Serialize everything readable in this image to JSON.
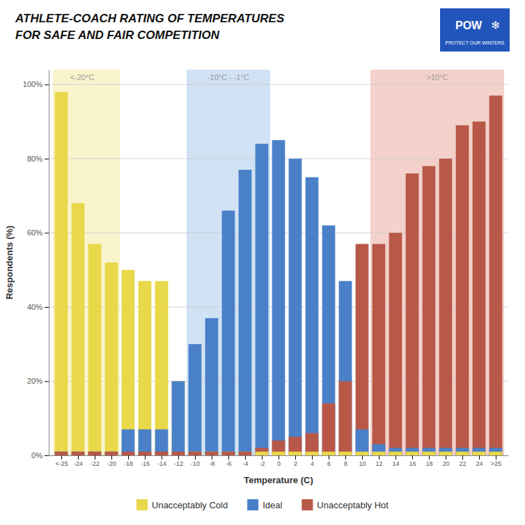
{
  "chart_data": {
    "type": "bar",
    "title": "ATHLETE-COACH RATING OF TEMPERATURES",
    "subtitle": "FOR SAFE AND FAIR COMPETITION",
    "xlabel": "Temperature (C)",
    "ylabel": "Respondents (%)",
    "x": [
      -26,
      -24,
      -22,
      -20,
      -18,
      -16,
      -14,
      -12,
      -10,
      -8,
      -6,
      -4,
      -2,
      0,
      2,
      4,
      6,
      8,
      10,
      12,
      14,
      16,
      18,
      20,
      22,
      24,
      26
    ],
    "series": [
      {
        "name": "Unacceptably Cold",
        "color": "#e8d84a",
        "values": [
          98,
          68,
          57,
          52,
          50,
          47,
          47,
          20,
          1,
          1,
          1,
          1,
          1,
          1,
          1,
          1,
          1,
          1,
          1,
          1,
          1,
          1,
          1,
          1,
          1,
          1,
          1
        ]
      },
      {
        "name": "Ideal",
        "color": "#4a80c8",
        "values": [
          1,
          1,
          1,
          1,
          7,
          7,
          7,
          20,
          30,
          37,
          66,
          77,
          84,
          85,
          80,
          75,
          62,
          47,
          7,
          3,
          2,
          2,
          2,
          2,
          2,
          2,
          2
        ]
      },
      {
        "name": "Unacceptably Hot",
        "color": "#b85848",
        "values": [
          1,
          1,
          1,
          1,
          1,
          1,
          1,
          1,
          1,
          1,
          1,
          1,
          2,
          4,
          5,
          6,
          14,
          20,
          57,
          57,
          60,
          76,
          78,
          80,
          89,
          90,
          97
        ]
      }
    ],
    "xlim": [
      -27.5,
      27.5
    ],
    "xticks": [
      {
        "value": -26,
        "label": "<-25"
      },
      -24,
      -22,
      -20,
      -18,
      -16,
      -14,
      -12,
      -10,
      -8,
      -6,
      -4,
      -2,
      0,
      2,
      4,
      6,
      8,
      10,
      12,
      14,
      16,
      18,
      20,
      22,
      24,
      {
        "value": 26,
        "label": ">25"
      }
    ],
    "ylim": [
      0,
      104
    ],
    "yticks": [
      {
        "value": 0,
        "label": "0%"
      },
      {
        "value": 20,
        "label": "20%"
      },
      {
        "value": 40,
        "label": "40%"
      },
      {
        "value": 60,
        "label": "60%"
      },
      {
        "value": 80,
        "label": "80%"
      },
      {
        "value": 100,
        "label": "100%"
      }
    ],
    "grid": true,
    "legend": "bottom",
    "zones": [
      {
        "x_start": -27,
        "x_end": -19,
        "color": "#f0e070"
      },
      {
        "x_start": -11,
        "x_end": -1,
        "color": "#7aace0"
      },
      {
        "x_start": 11,
        "x_end": 27,
        "color": "#e07a6a"
      }
    ],
    "annotations": [
      {
        "text": "<-20°C",
        "x": -23.5,
        "color": "#999999"
      },
      {
        "text": "-10°C - -1°C",
        "x": -6.0,
        "color": "#999999"
      },
      {
        "text": ">10°C",
        "x": 19.0,
        "color": "#999999"
      }
    ],
    "logo": {
      "title": "POW",
      "symbol": "❄",
      "text": "PROTECT OUR WINTERS",
      "color": "#2255bb"
    }
  }
}
